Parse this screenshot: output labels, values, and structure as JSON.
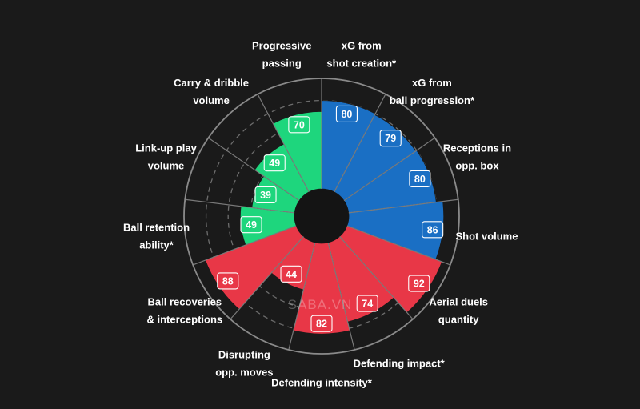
{
  "watermark": "SABA.VN",
  "colors": {
    "background": "#1a1a1a",
    "attacking": "#1a6fc4",
    "possession": "#1ed67d",
    "defending": "#e83747",
    "grid": "#8a8a8a",
    "center": "#141414"
  },
  "chart_data": {
    "type": "polar-bar",
    "scale": [
      0,
      100
    ],
    "categories": [
      {
        "label": "xG from\nshot creation*",
        "value": 80,
        "group": "attacking"
      },
      {
        "label": "xG from\nball progression*",
        "value": 79,
        "group": "attacking"
      },
      {
        "label": "Receptions in\nopp. box",
        "value": 80,
        "group": "attacking"
      },
      {
        "label": "Shot volume",
        "value": 86,
        "group": "attacking"
      },
      {
        "label": "Aerial duels\nquantity",
        "value": 92,
        "group": "defending"
      },
      {
        "label": "Defending impact*",
        "value": 74,
        "group": "defending"
      },
      {
        "label": "Defending intensity*",
        "value": 82,
        "group": "defending"
      },
      {
        "label": "Disrupting\nopp. moves",
        "value": 44,
        "group": "defending"
      },
      {
        "label": "Ball recoveries\n& interceptions",
        "value": 88,
        "group": "defending"
      },
      {
        "label": "Ball retention\nability*",
        "value": 49,
        "group": "possession"
      },
      {
        "label": "Link-up play\nvolume",
        "value": 39,
        "group": "possession"
      },
      {
        "label": "Carry & dribble\nvolume",
        "value": 49,
        "group": "possession"
      },
      {
        "label": "Progressive\npassing",
        "value": 70,
        "group": "possession"
      }
    ]
  }
}
